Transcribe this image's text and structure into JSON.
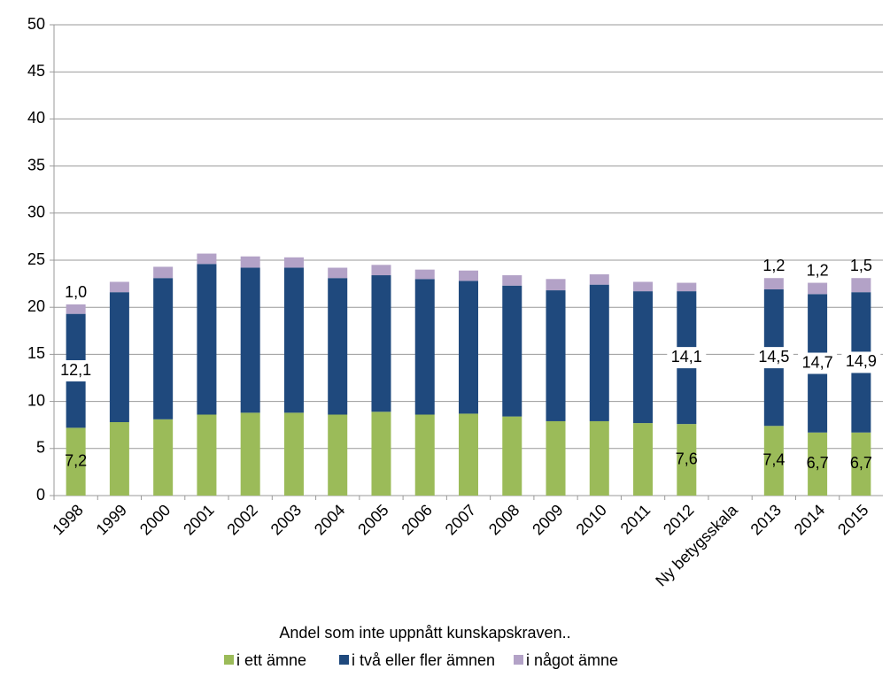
{
  "chart_data": {
    "type": "stacked_bar",
    "x_label": "Andel som inte uppnått kunskapskraven..",
    "categories": [
      "1998",
      "1999",
      "2000",
      "2001",
      "2002",
      "2003",
      "2004",
      "2005",
      "2006",
      "2007",
      "2008",
      "2009",
      "2010",
      "2011",
      "2012",
      "Ny betygsskala",
      "2013",
      "2014",
      "2015"
    ],
    "series": [
      {
        "name": "i ett ämne",
        "color": "#9bbb59",
        "values": [
          7.2,
          7.8,
          8.1,
          8.6,
          8.8,
          8.8,
          8.6,
          8.9,
          8.6,
          8.7,
          8.4,
          7.9,
          7.9,
          7.7,
          7.6,
          null,
          7.4,
          6.7,
          6.7
        ],
        "value_labels": [
          "7,2",
          null,
          null,
          null,
          null,
          null,
          null,
          null,
          null,
          null,
          null,
          null,
          null,
          null,
          "7,6",
          null,
          "7,4",
          "6,7",
          "6,7"
        ]
      },
      {
        "name": "i två eller fler ämnen",
        "color": "#1f497d",
        "values": [
          12.1,
          13.8,
          15.0,
          16.0,
          15.4,
          15.4,
          14.5,
          14.5,
          14.4,
          14.1,
          13.9,
          13.9,
          14.5,
          14.0,
          14.1,
          null,
          14.5,
          14.7,
          14.9
        ],
        "value_labels": [
          "12,1",
          null,
          null,
          null,
          null,
          null,
          null,
          null,
          null,
          null,
          null,
          null,
          null,
          null,
          "14,1",
          null,
          "14,5",
          "14,7",
          "14,9"
        ]
      },
      {
        "name": "i något ämne",
        "color": "#b3a2c7",
        "values": [
          1.0,
          1.1,
          1.2,
          1.1,
          1.2,
          1.1,
          1.1,
          1.1,
          1.0,
          1.1,
          1.1,
          1.2,
          1.1,
          1.0,
          0.9,
          null,
          1.2,
          1.2,
          1.5
        ],
        "value_labels": [
          "1,0",
          null,
          null,
          null,
          null,
          null,
          null,
          null,
          null,
          null,
          null,
          null,
          null,
          null,
          null,
          null,
          "1,2",
          "1,2",
          "1,5"
        ]
      }
    ],
    "ylim": [
      0,
      50
    ],
    "yticks": [
      0,
      5,
      10,
      15,
      20,
      25,
      30,
      35,
      40,
      45,
      50
    ],
    "grid": true,
    "legend": "bottom"
  }
}
